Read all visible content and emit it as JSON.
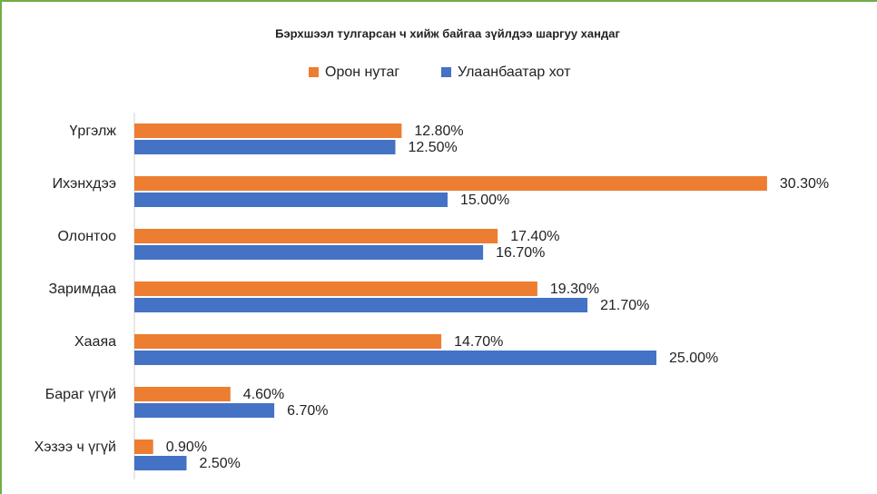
{
  "chart_data": {
    "type": "hbar",
    "title": "Бэрхшээл тулгарсан ч хийж байгаа зүйлдээ шаргуу хандаг",
    "categories": [
      "Үргэлж",
      "Ихэнхдээ",
      "Олонтоо",
      "Заримдаа",
      "Хааяа",
      "Бараг үгүй",
      "Хэзээ ч үгүй"
    ],
    "series": [
      {
        "name": "Орон нутаг",
        "color": "#ed7d31",
        "values": [
          12.8,
          30.3,
          17.4,
          19.3,
          14.7,
          4.6,
          0.9
        ],
        "value_labels": [
          "12.80%",
          "30.30%",
          "17.40%",
          "19.30%",
          "14.70%",
          "4.60%",
          "0.90%"
        ]
      },
      {
        "name": "Улаанбаатар хот",
        "color": "#4472c4",
        "values": [
          12.5,
          15.0,
          16.7,
          21.7,
          25.0,
          6.7,
          2.5
        ],
        "value_labels": [
          "12.50%",
          "15.00%",
          "16.70%",
          "21.70%",
          "25.00%",
          "6.70%",
          "2.50%"
        ]
      }
    ],
    "legend": "top"
  }
}
